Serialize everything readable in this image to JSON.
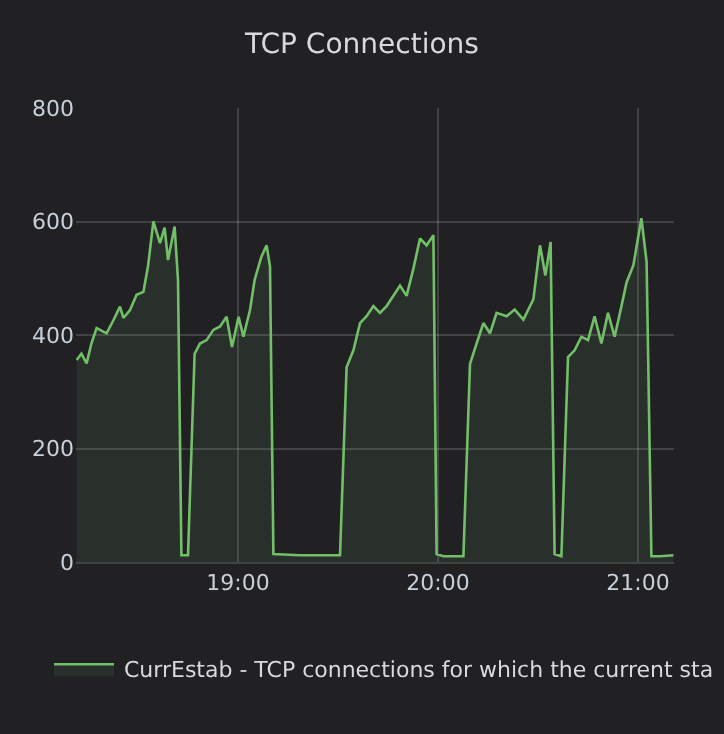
{
  "chart_data": {
    "type": "area",
    "title": "TCP Connections",
    "x": [
      18.193,
      18.217,
      18.243,
      18.267,
      18.293,
      18.343,
      18.377,
      18.41,
      18.427,
      18.46,
      18.493,
      18.527,
      18.55,
      18.577,
      18.61,
      18.633,
      18.65,
      18.683,
      18.7,
      18.717,
      18.75,
      18.783,
      18.81,
      18.843,
      18.877,
      18.91,
      18.943,
      18.97,
      19.003,
      19.027,
      19.06,
      19.083,
      19.117,
      19.143,
      19.16,
      19.177,
      19.31,
      19.51,
      19.543,
      19.577,
      19.61,
      19.643,
      19.677,
      19.71,
      19.743,
      19.777,
      19.81,
      19.843,
      19.877,
      19.91,
      19.943,
      19.977,
      19.993,
      20.027,
      20.127,
      20.16,
      20.193,
      20.227,
      20.26,
      20.293,
      20.343,
      20.383,
      20.427,
      20.477,
      20.51,
      20.537,
      20.563,
      20.583,
      20.617,
      20.65,
      20.683,
      20.717,
      20.75,
      20.783,
      20.817,
      20.85,
      20.883,
      20.91,
      20.943,
      20.977,
      21.017,
      21.043,
      21.067,
      21.11,
      21.177
    ],
    "series": [
      {
        "name": "CurrEstab - TCP connections for which the current sta",
        "color": "#73bf69",
        "values": [
          356,
          367,
          350,
          385,
          412,
          403,
          426,
          450,
          430,
          444,
          471,
          476,
          521,
          600,
          562,
          589,
          532,
          591,
          497,
          12,
          12,
          367,
          385,
          391,
          409,
          415,
          432,
          379,
          432,
          397,
          444,
          497,
          538,
          558,
          521,
          14,
          12,
          12,
          343,
          373,
          421,
          433,
          451,
          439,
          451,
          469,
          487,
          469,
          517,
          570,
          558,
          576,
          14,
          10,
          10,
          349,
          385,
          421,
          403,
          439,
          433,
          445,
          427,
          463,
          558,
          505,
          564,
          14,
          10,
          361,
          373,
          397,
          391,
          433,
          385,
          439,
          397,
          439,
          493,
          523,
          606,
          529,
          10,
          10,
          12
        ]
      }
    ],
    "xlim": [
      18.19,
      21.18
    ],
    "xticks": [
      {
        "value": 19,
        "label": "19:00"
      },
      {
        "value": 20,
        "label": "20:00"
      },
      {
        "value": 21,
        "label": "21:00"
      }
    ],
    "ylim": [
      0,
      800
    ],
    "yticks": [
      0,
      200,
      400,
      600,
      800
    ],
    "grid": true,
    "legend": "bottom"
  }
}
